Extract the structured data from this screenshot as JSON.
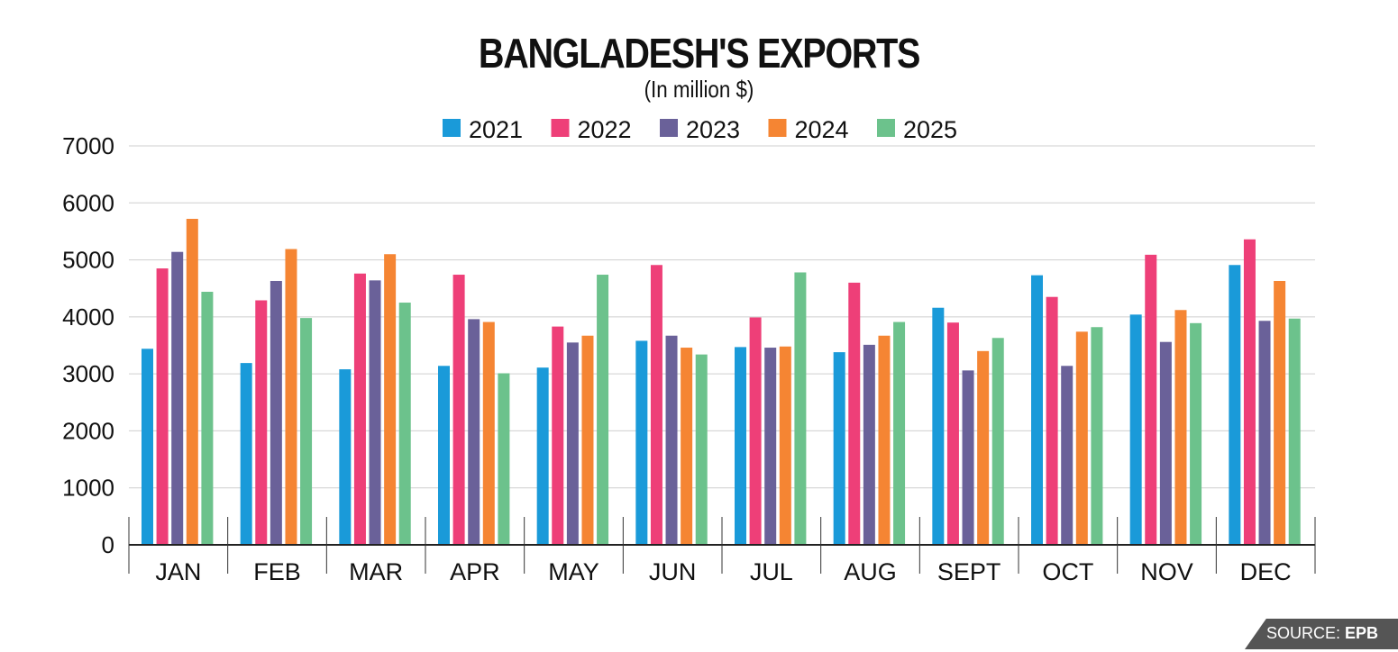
{
  "chart_data": {
    "type": "bar",
    "title": "BANGLADESH'S EXPORTS",
    "subtitle": "(In million $)",
    "categories": [
      "JAN",
      "FEB",
      "MAR",
      "APR",
      "MAY",
      "JUN",
      "JUL",
      "AUG",
      "SEPT",
      "OCT",
      "NOV",
      "DEC"
    ],
    "series": [
      {
        "name": "2021",
        "color": "#1a9ad9",
        "values": [
          3440,
          3190,
          3080,
          3140,
          3110,
          3580,
          3470,
          3380,
          4160,
          4730,
          4040,
          4910
        ]
      },
      {
        "name": "2022",
        "color": "#ee3f78",
        "values": [
          4850,
          4290,
          4760,
          4740,
          3830,
          4910,
          3990,
          4600,
          3900,
          4350,
          5090,
          5360
        ]
      },
      {
        "name": "2023",
        "color": "#6a6199",
        "values": [
          5140,
          4630,
          4640,
          3960,
          3550,
          3670,
          3460,
          3510,
          3060,
          3140,
          3560,
          3930
        ]
      },
      {
        "name": "2024",
        "color": "#f58533",
        "values": [
          5720,
          5190,
          5100,
          3910,
          3670,
          3460,
          3480,
          3670,
          3400,
          3740,
          4120,
          4630
        ]
      },
      {
        "name": "2025",
        "color": "#6cc28c",
        "values": [
          4440,
          3980,
          4250,
          3010,
          4740,
          3340,
          4780,
          3910,
          3630,
          3820,
          3890,
          3970
        ]
      }
    ],
    "ylim": [
      0,
      7000
    ],
    "yticks": [
      0,
      1000,
      2000,
      3000,
      4000,
      5000,
      6000,
      7000
    ],
    "grid": true,
    "legend_position": "top-center"
  },
  "source": {
    "label": "SOURCE:",
    "name": "EPB"
  }
}
